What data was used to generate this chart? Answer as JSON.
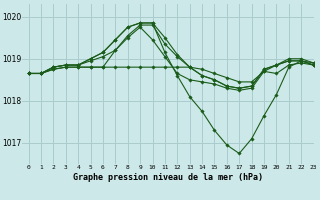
{
  "title": "Graphe pression niveau de la mer (hPa)",
  "xlim": [
    -0.5,
    23
  ],
  "ylim": [
    1016.5,
    1020.3
  ],
  "yticks": [
    1017,
    1018,
    1019,
    1020
  ],
  "xticks": [
    0,
    1,
    2,
    3,
    4,
    5,
    6,
    7,
    8,
    9,
    10,
    11,
    12,
    13,
    14,
    15,
    16,
    17,
    18,
    19,
    20,
    21,
    22,
    23
  ],
  "background_color": "#cce8e8",
  "grid_color": "#aacccc",
  "line_color": "#1a5c1a",
  "lines": [
    [
      1018.65,
      1018.65,
      1018.75,
      1018.8,
      1018.8,
      1018.8,
      1018.8,
      1018.8,
      1018.8,
      1018.8,
      1018.8,
      1018.8,
      1018.8,
      1018.8,
      1018.75,
      1018.65,
      1018.55,
      1018.45,
      1018.45,
      1018.7,
      1018.65,
      1018.85,
      1018.9,
      1018.85
    ],
    [
      1018.65,
      1018.65,
      1018.75,
      1018.8,
      1018.8,
      1018.8,
      1018.8,
      1019.2,
      1019.5,
      1019.75,
      1019.45,
      1019.05,
      1018.65,
      1018.5,
      1018.45,
      1018.4,
      1018.3,
      1018.25,
      1018.3,
      1018.7,
      1018.85,
      1018.95,
      1018.95,
      1018.85
    ],
    [
      1018.65,
      1018.65,
      1018.8,
      1018.85,
      1018.85,
      1018.95,
      1019.05,
      1019.2,
      1019.55,
      1019.8,
      1019.8,
      1019.35,
      1019.05,
      1018.8,
      1018.6,
      1018.5,
      1018.35,
      1018.3,
      1018.35,
      1018.75,
      1018.85,
      1018.95,
      1018.95,
      1018.9
    ],
    [
      1018.65,
      1018.65,
      1018.8,
      1018.85,
      1018.85,
      1019.0,
      1019.15,
      1019.45,
      1019.75,
      1019.85,
      1019.85,
      1019.5,
      1019.1,
      1018.8,
      1018.6,
      1018.5,
      1018.35,
      1018.3,
      1018.35,
      1018.75,
      1018.85,
      1019.0,
      1019.0,
      1018.9
    ],
    [
      1018.65,
      1018.65,
      1018.8,
      1018.85,
      1018.85,
      1019.0,
      1019.15,
      1019.45,
      1019.75,
      1019.85,
      1019.85,
      1019.15,
      1018.6,
      1018.1,
      1017.75,
      1017.3,
      1016.95,
      1016.75,
      1017.1,
      1017.65,
      1018.15,
      1018.8,
      1018.95,
      1018.85
    ]
  ]
}
